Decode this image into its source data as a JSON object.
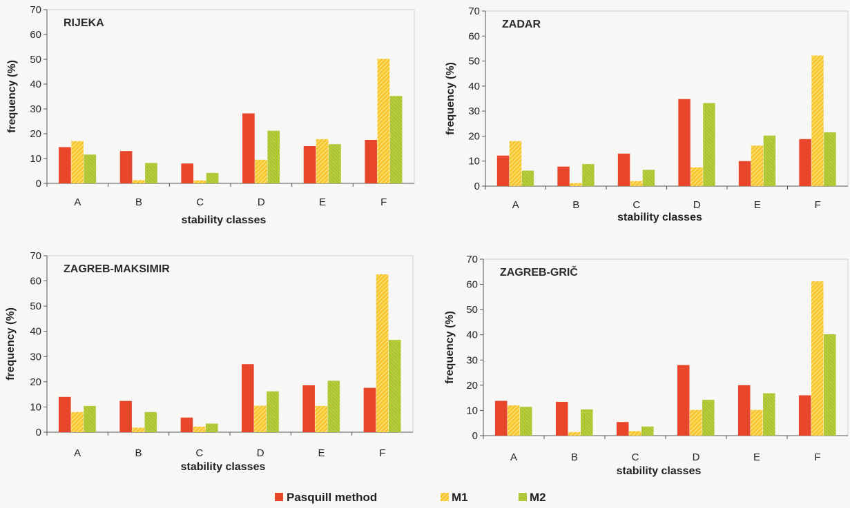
{
  "chart_data": [
    {
      "type": "bar",
      "title": "RIJEKA",
      "xlabel": "stability classes",
      "ylabel": "frequency (%)",
      "ylim": [
        0,
        70
      ],
      "yticks": [
        0,
        10,
        20,
        30,
        40,
        50,
        60,
        70
      ],
      "categories": [
        "A",
        "B",
        "C",
        "D",
        "E",
        "F"
      ],
      "series": [
        {
          "name": "Pasquill method",
          "color": "#e8462b",
          "values": [
            14.6,
            13.0,
            8.0,
            28.2,
            15.0,
            17.5
          ]
        },
        {
          "name": "M1",
          "color": "#f7c52a",
          "values": [
            17.0,
            1.3,
            1.2,
            9.5,
            17.8,
            50.2
          ]
        },
        {
          "name": "M2",
          "color": "#b6cc3a",
          "values": [
            11.6,
            8.2,
            4.2,
            21.2,
            15.8,
            35.2
          ]
        }
      ]
    },
    {
      "type": "bar",
      "title": "ZADAR",
      "xlabel": "stability classes",
      "ylabel": "frequency (%)",
      "ylim": [
        0,
        70
      ],
      "yticks": [
        0,
        10,
        20,
        30,
        40,
        50,
        60,
        70
      ],
      "categories": [
        "A",
        "B",
        "C",
        "D",
        "E",
        "F"
      ],
      "series": [
        {
          "name": "Pasquill method",
          "color": "#e8462b",
          "values": [
            12.2,
            7.8,
            13.0,
            34.8,
            10.0,
            18.8
          ]
        },
        {
          "name": "M1",
          "color": "#f7c52a",
          "values": [
            18.0,
            1.2,
            2.0,
            7.5,
            16.2,
            52.2
          ]
        },
        {
          "name": "M2",
          "color": "#b6cc3a",
          "values": [
            6.2,
            8.8,
            6.5,
            33.2,
            20.2,
            21.5
          ]
        }
      ]
    },
    {
      "type": "bar",
      "title": "ZAGREB-MAKSIMIR",
      "xlabel": "stability classes",
      "ylabel": "frequency (%)",
      "ylim": [
        0,
        70
      ],
      "yticks": [
        0,
        10,
        20,
        30,
        40,
        50,
        60,
        70
      ],
      "categories": [
        "A",
        "B",
        "C",
        "D",
        "E",
        "F"
      ],
      "series": [
        {
          "name": "Pasquill method",
          "color": "#e8462b",
          "values": [
            14.0,
            12.4,
            5.8,
            27.0,
            18.6,
            17.6
          ]
        },
        {
          "name": "M1",
          "color": "#f7c52a",
          "values": [
            8.0,
            1.8,
            2.2,
            10.5,
            10.4,
            62.6
          ]
        },
        {
          "name": "M2",
          "color": "#b6cc3a",
          "values": [
            10.4,
            8.0,
            3.4,
            16.2,
            20.4,
            36.6
          ]
        }
      ]
    },
    {
      "type": "bar",
      "title": "ZAGREB-GRIČ",
      "xlabel": "stability classes",
      "ylabel": "frequency (%)",
      "ylim": [
        0,
        70
      ],
      "yticks": [
        0,
        10,
        20,
        30,
        40,
        50,
        60,
        70
      ],
      "categories": [
        "A",
        "B",
        "C",
        "D",
        "E",
        "F"
      ],
      "series": [
        {
          "name": "Pasquill method",
          "color": "#e8462b",
          "values": [
            13.8,
            13.4,
            5.4,
            28.0,
            20.0,
            16.0
          ]
        },
        {
          "name": "M1",
          "color": "#f7c52a",
          "values": [
            12.0,
            1.4,
            1.8,
            10.2,
            10.2,
            61.2
          ]
        },
        {
          "name": "M2",
          "color": "#b6cc3a",
          "values": [
            11.4,
            10.4,
            3.6,
            14.2,
            16.8,
            40.2
          ]
        }
      ]
    }
  ],
  "legend": {
    "placement": "bottom-center",
    "items": [
      {
        "name": "Pasquill method",
        "color": "#e8462b"
      },
      {
        "name": "M1",
        "color": "#f7c52a"
      },
      {
        "name": "M2",
        "color": "#b6cc3a"
      }
    ]
  }
}
